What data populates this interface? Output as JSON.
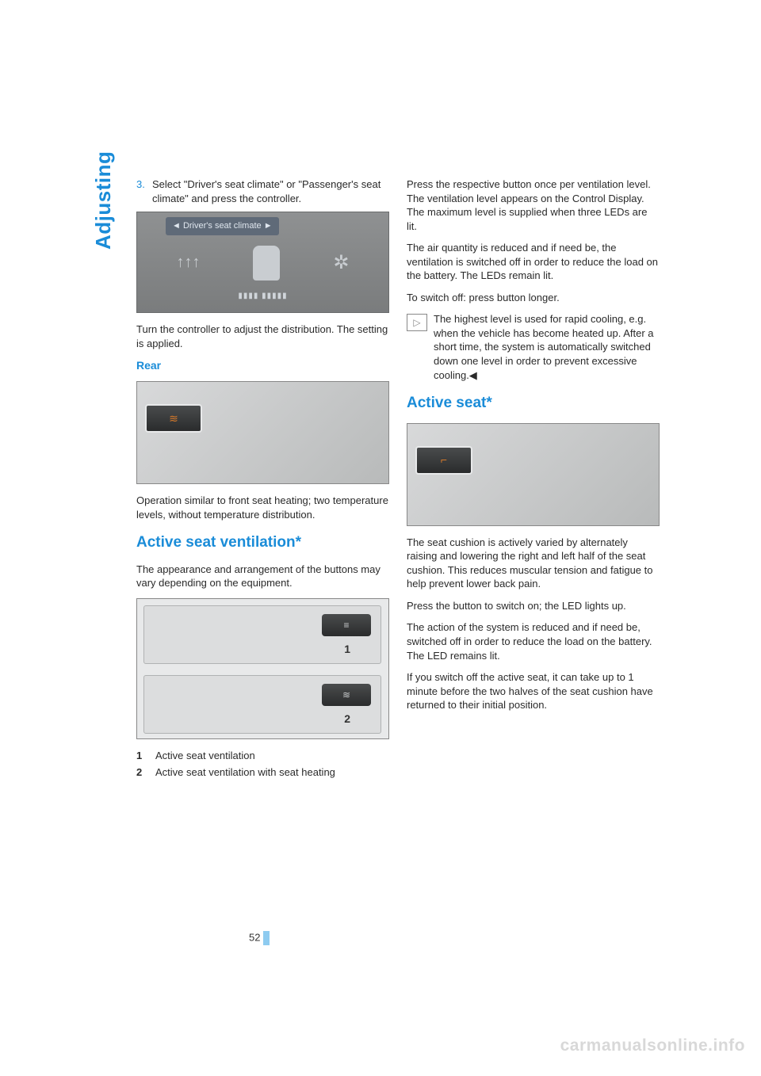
{
  "page": {
    "side_label": "Adjusting",
    "page_number": "52",
    "watermark": "carmanualsonline.info"
  },
  "left": {
    "step3_num": "3.",
    "step3_text": "Select \"Driver's seat climate\" or \"Passenger's seat climate\" and press the controller.",
    "screen_header": "Driver's seat climate",
    "screen_footer": "▮▮▮▮ ▮▮▮▮▮",
    "after_screen_1": "Turn the controller to adjust the distribution. The setting is applied.",
    "rear_heading": "Rear",
    "rear_inset_icon": "≋",
    "rear_text": "Operation similar to front seat heating; two temperature levels, without temperature distribution.",
    "vent_heading": "Active seat ventilation*",
    "vent_intro": "The appearance and arrangement of the buttons may vary depending on the equipment.",
    "btn1_label": "1",
    "btn2_label": "2",
    "legend1_num": "1",
    "legend1_text": "Active seat ventilation",
    "legend2_num": "2",
    "legend2_text": "Active seat ventilation with seat heating"
  },
  "right": {
    "p1": "Press the respective button once per ventilation level. The ventilation level appears on the Control Display. The maximum level is supplied when three LEDs are lit.",
    "p2": "The air quantity is reduced and if need be, the ventilation is switched off in order to reduce the load on the battery. The LEDs remain lit.",
    "p3": "To switch off: press button longer.",
    "note_icon": "▷",
    "note_text": "The highest level is used for rapid cooling, e.g. when the vehicle has become heated up. After a short time, the system is automatically switched down one level in order to prevent excessive cooling.◀",
    "active_seat_heading": "Active seat*",
    "inset_icon": "⌐",
    "p4": "The seat cushion is actively varied by alternately raising and lowering the right and left half of the seat cushion. This reduces muscular tension and fatigue to help prevent lower back pain.",
    "p5": "Press the button to switch on; the LED lights up.",
    "p6": "The action of the system is reduced and if need be, switched off in order to reduce the load on the battery. The LED remains lit.",
    "p7": "If you switch off the active seat, it can take up to 1 minute before the two halves of the seat cushion have returned to their initial position."
  }
}
